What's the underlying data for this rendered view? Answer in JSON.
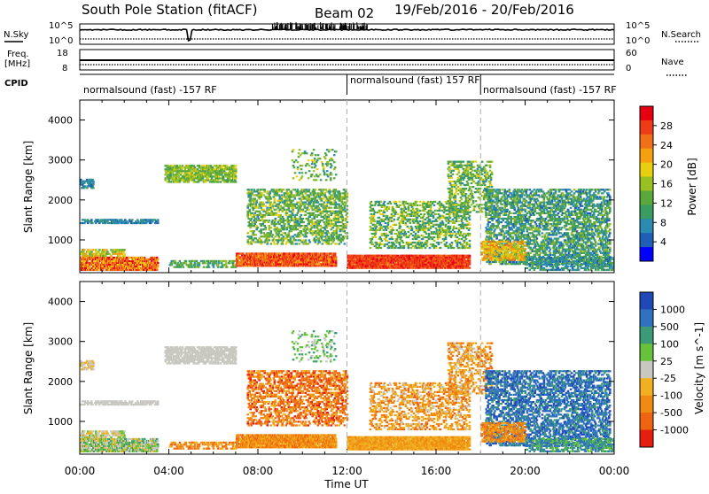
{
  "header": {
    "station": "South Pole Station (fitACF)",
    "beam": "Beam 02",
    "date_range": "19/Feb/2016 - 20/Feb/2016"
  },
  "left_labels": {
    "nsky": "N.Sky",
    "freq_line1": "Freq.",
    "freq_line2": "[MHz]",
    "cpid": "CPID"
  },
  "right_labels": {
    "nsearch": "N.Search",
    "nave": "Nave"
  },
  "nsky_ticks": {
    "top": "10^5",
    "bottom": "10^0"
  },
  "nsearch_ticks": {
    "top": "10^5",
    "bottom": "10^0"
  },
  "freq_ticks": {
    "top": "18",
    "bottom": "8"
  },
  "nave_ticks": {
    "top": "60",
    "bottom": "0"
  },
  "cpid_segments": [
    {
      "label": "normalsound (fast) -157 RF",
      "start_hour": 0
    },
    {
      "label": "normalsound (fast) 157 RF",
      "start_hour": 12
    },
    {
      "label": "normalsound (fast) -157 RF",
      "start_hour": 18
    }
  ],
  "chart_data": [
    {
      "type": "heatmap",
      "ylabel": "Slant Range [km]",
      "xlabel": "",
      "ylim": [
        180,
        4500
      ],
      "yticks": [
        "1000",
        "2000",
        "3000",
        "4000"
      ],
      "xticks": [
        "00:00",
        "04:00",
        "08:00",
        "12:00",
        "16:00",
        "20:00",
        "00:00"
      ],
      "colorbar": {
        "label": "Power [dB]",
        "ticks": [
          "4",
          "8",
          "12",
          "16",
          "20",
          "24",
          "28"
        ],
        "colors": [
          "#0000ff",
          "#1f5fb8",
          "#2a8ab0",
          "#3a9c60",
          "#5aa83c",
          "#98c020",
          "#e8d010",
          "#f5a010",
          "#f07018",
          "#ee3c18",
          "#e60012"
        ]
      }
    },
    {
      "type": "heatmap",
      "ylabel": "Slant Range [km]",
      "xlabel": "Time UT",
      "ylim": [
        180,
        4500
      ],
      "yticks": [
        "1000",
        "2000",
        "3000",
        "4000"
      ],
      "xticks": [
        "00:00",
        "04:00",
        "08:00",
        "12:00",
        "16:00",
        "20:00",
        "00:00"
      ],
      "colorbar": {
        "label": "Velocity [m s^-1]",
        "ticks": [
          "1000",
          "500",
          "100",
          "25",
          "-25",
          "-100",
          "-500",
          "-1000"
        ],
        "colors": [
          "#2049b8",
          "#2f73c0",
          "#3d9a78",
          "#66c23a",
          "#c8c8c0",
          "#f0b020",
          "#f08a12",
          "#ee6410",
          "#e61e10"
        ]
      }
    }
  ]
}
